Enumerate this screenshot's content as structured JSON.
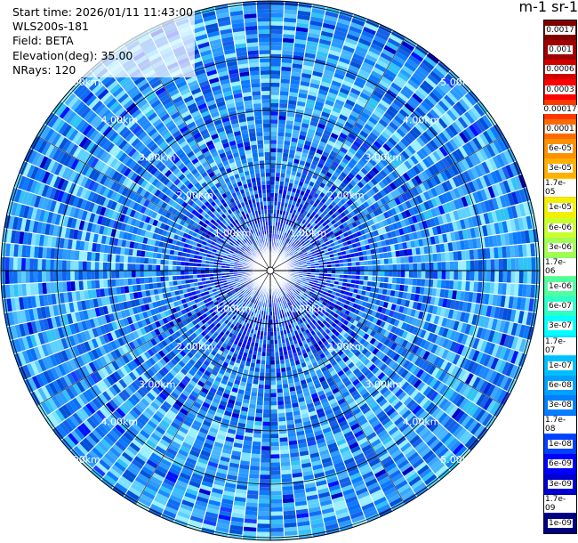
{
  "info": {
    "start_time": "Start time: 2026/01/11 11:43:00",
    "instrument": "WLS200s-181",
    "field": "Field: BETA",
    "elevation": "Elevation(deg): 35.00",
    "nrays": "NRays: 120"
  },
  "colorbar": {
    "title": "m-1 sr-1",
    "labels": [
      "0.0017",
      "0.001",
      "0.0006",
      "0.0003",
      "0.00017",
      "0.0001",
      "6e-05",
      "3e-05",
      "1.7e-05",
      "1e-05",
      "6e-06",
      "3e-06",
      "1.7e-06",
      "1e-06",
      "6e-07",
      "3e-07",
      "1.7e-07",
      "1e-07",
      "6e-08",
      "3e-08",
      "1.7e-08",
      "1e-08",
      "6e-09",
      "3e-09",
      "1.7e-09",
      "1e-09"
    ],
    "colors": [
      "#800000",
      "#a00000",
      "#d00000",
      "#ff0000",
      "#ff3a00",
      "#ff6a00",
      "#ff9000",
      "#ffb000",
      "#ffd000",
      "#f0f000",
      "#c8ff2c",
      "#a0ff50",
      "#78ff78",
      "#50ffa0",
      "#2cffc8",
      "#00ffff",
      "#00e0ff",
      "#00bfff",
      "#00a0ff",
      "#0080ff",
      "#0060ff",
      "#0040ff",
      "#0000ff",
      "#0000d0",
      "#0000a0",
      "#000080"
    ]
  },
  "chart_data": {
    "type": "heatmap",
    "projection": "polar (plan position indicator)",
    "field": "BETA",
    "elevation_deg": 35.0,
    "n_rays": 120,
    "range_ring_labels": [
      "1.00km",
      "2.00km",
      "3.00km",
      "4.00km",
      "5.00km"
    ],
    "range_rings_km": [
      1,
      2,
      3,
      4,
      5
    ],
    "max_range_km": 5.0,
    "colormap": "jet",
    "value_range": [
      1e-09,
      0.0017
    ],
    "dominant_value_near": 3e-08,
    "dominant_value_far": 6e-08
  }
}
